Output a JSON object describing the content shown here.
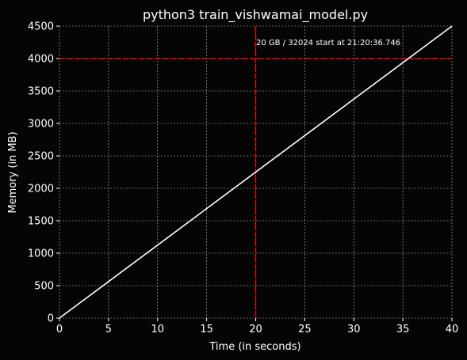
{
  "chart_data": {
    "type": "line",
    "title": "python3 train_vishwamai_model.py",
    "xlabel": "Time (in seconds)",
    "ylabel": "Memory (in MB)",
    "xlim": [
      0,
      40
    ],
    "ylim": [
      0,
      4500
    ],
    "xticks": [
      0,
      5,
      10,
      15,
      20,
      25,
      30,
      35,
      40
    ],
    "yticks": [
      0,
      500,
      1000,
      1500,
      2000,
      2500,
      3000,
      3500,
      4000,
      4500
    ],
    "grid": true,
    "background_color": "#050505",
    "series": [
      {
        "x": [
          0,
          40
        ],
        "y": [
          0,
          4500
        ],
        "color": "#ffffff"
      }
    ],
    "reference_lines": [
      {
        "orientation": "horizontal",
        "value": 4000,
        "color": "#ff0000",
        "style": "dashed"
      },
      {
        "orientation": "vertical",
        "value": 20,
        "color": "#ff0000",
        "style": "dashed"
      }
    ],
    "annotations": [
      {
        "text": "20 GB / 32024 start at 21:20:36.746",
        "x": 20,
        "y": 4200
      }
    ]
  }
}
